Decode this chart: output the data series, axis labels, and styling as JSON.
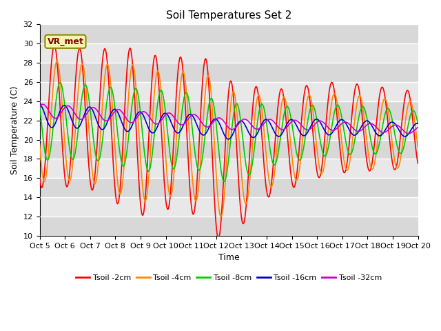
{
  "title": "Soil Temperatures Set 2",
  "xlabel": "Time",
  "ylabel": "Soil Temperature (C)",
  "ylim": [
    10,
    32
  ],
  "figsize": [
    6.4,
    4.8
  ],
  "dpi": 100,
  "bg_color": "#ffffff",
  "plot_bg_color": "#e8e8e8",
  "band_colors": [
    "#d8d8d8",
    "#e8e8e8"
  ],
  "grid_color": "#ffffff",
  "annotation_text": "VR_met",
  "annotation_bg": "#f5f5b0",
  "annotation_border": "#8B8B00",
  "series_order": [
    "Tsoil -2cm",
    "Tsoil -4cm",
    "Tsoil -8cm",
    "Tsoil -16cm",
    "Tsoil -32cm"
  ],
  "series": {
    "Tsoil -2cm": {
      "color": "#ff0000",
      "lw": 1.2
    },
    "Tsoil -4cm": {
      "color": "#ff8800",
      "lw": 1.2
    },
    "Tsoil -8cm": {
      "color": "#00cc00",
      "lw": 1.2
    },
    "Tsoil -16cm": {
      "color": "#0000cc",
      "lw": 1.2
    },
    "Tsoil -32cm": {
      "color": "#cc00cc",
      "lw": 1.2
    }
  },
  "xtick_labels": [
    "Oct 5",
    "Oct 6",
    "Oct 7",
    "Oct 8",
    "Oct 9",
    "Oct 10",
    "Oct 11",
    "Oct 12",
    "Oct 13",
    "Oct 14",
    "Oct 15",
    "Oct 16",
    "Oct 17",
    "Oct 18",
    "Oct 19",
    "Oct 20"
  ],
  "ytick_values": [
    10,
    12,
    14,
    16,
    18,
    20,
    22,
    24,
    26,
    28,
    30,
    32
  ]
}
